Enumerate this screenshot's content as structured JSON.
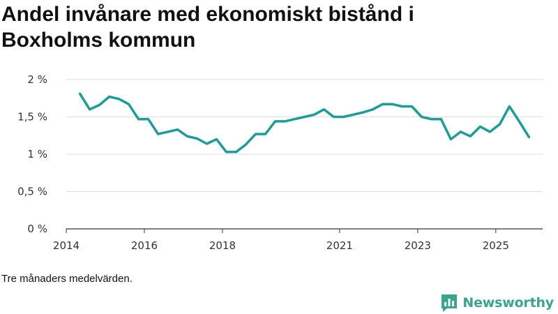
{
  "title_lines": [
    "Andel invånare med ekonomiskt bistånd i",
    "Boxholms kommun"
  ],
  "footnote": "Tre månaders medelvärden.",
  "brand": {
    "name": "Newsworthy",
    "icon": "newsworthy-logo-icon",
    "color": "#3aa58f"
  },
  "colors": {
    "line": "#1a9e95",
    "grid": "#dddddd",
    "axis": "#333333"
  },
  "chart_data": {
    "type": "line",
    "title": "Andel invånare med ekonomiskt bistånd i Boxholms kommun",
    "xlabel": "",
    "ylabel": "",
    "ylim": [
      0,
      2
    ],
    "y_ticks": [
      0,
      0.5,
      1,
      1.5,
      2
    ],
    "y_tick_labels": [
      "0 %",
      "0,5 %",
      "1 %",
      "1,5 %",
      "2 %"
    ],
    "xlim": [
      2014.0,
      2026.2
    ],
    "x_ticks": [
      2014,
      2016,
      2018,
      2021,
      2023,
      2025
    ],
    "x_tick_labels": [
      "2014",
      "2016",
      "2018",
      "2021",
      "2023",
      "2025"
    ],
    "series": [
      {
        "name": "Andel invånare med ekonomiskt bistånd",
        "unit": "%",
        "x": [
          2014.35,
          2014.6,
          2014.85,
          2015.1,
          2015.35,
          2015.6,
          2015.85,
          2016.1,
          2016.35,
          2016.6,
          2016.85,
          2017.1,
          2017.35,
          2017.6,
          2017.85,
          2018.1,
          2018.35,
          2018.6,
          2018.85,
          2019.1,
          2019.35,
          2019.6,
          2019.85,
          2020.1,
          2020.35,
          2020.6,
          2020.85,
          2021.1,
          2021.35,
          2021.6,
          2021.85,
          2022.1,
          2022.35,
          2022.6,
          2022.85,
          2023.1,
          2023.35,
          2023.6,
          2023.85,
          2024.1,
          2024.35,
          2024.6,
          2024.85,
          2025.1,
          2025.35,
          2025.6,
          2025.85
        ],
        "values": [
          1.81,
          1.6,
          1.66,
          1.77,
          1.74,
          1.67,
          1.47,
          1.47,
          1.27,
          1.3,
          1.33,
          1.24,
          1.21,
          1.14,
          1.2,
          1.03,
          1.03,
          1.13,
          1.27,
          1.27,
          1.44,
          1.44,
          1.47,
          1.5,
          1.53,
          1.6,
          1.5,
          1.5,
          1.53,
          1.56,
          1.6,
          1.67,
          1.67,
          1.64,
          1.64,
          1.5,
          1.47,
          1.47,
          1.2,
          1.3,
          1.24,
          1.37,
          1.3,
          1.4,
          1.64,
          1.44,
          1.23
        ]
      }
    ]
  }
}
